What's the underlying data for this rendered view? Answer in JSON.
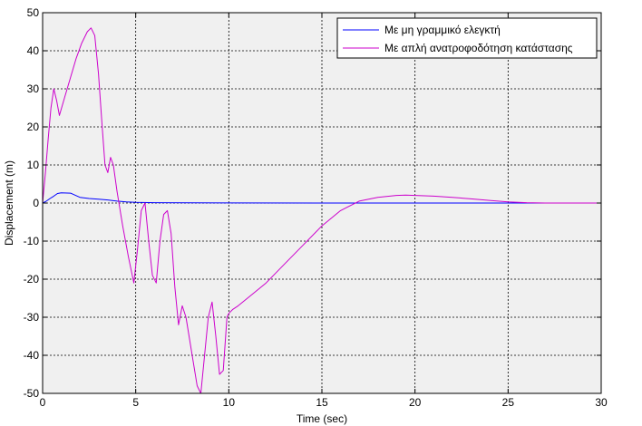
{
  "chart_data": {
    "type": "line",
    "title": "",
    "xlabel": "Time (sec)",
    "ylabel": "Displacement (m)",
    "xlim": [
      0,
      30
    ],
    "ylim": [
      -50,
      50
    ],
    "xticks": [
      0,
      5,
      10,
      15,
      20,
      25,
      30
    ],
    "yticks": [
      -50,
      -40,
      -30,
      -20,
      -10,
      0,
      10,
      20,
      30,
      40,
      50
    ],
    "grid": true,
    "legend_position": "top-right",
    "plot_background": "#f0f0f0",
    "series": [
      {
        "name": "Με μη γραμμικό ελεγκτή",
        "color": "#0000ff",
        "x": [
          0,
          0.2,
          0.4,
          0.6,
          0.8,
          1.0,
          1.5,
          2.0,
          2.5,
          3.0,
          3.5,
          4.0,
          4.5,
          5.0,
          6.0,
          8.0,
          10.0,
          15.0,
          20.0,
          25.0,
          30.0
        ],
        "y": [
          0,
          0.5,
          1.2,
          1.8,
          2.5,
          2.7,
          2.6,
          1.5,
          1.2,
          1.0,
          0.8,
          0.5,
          0.3,
          0.2,
          0.1,
          0.05,
          0.02,
          0,
          0,
          0,
          0
        ]
      },
      {
        "name": "Με απλή ανατροφοδότηση κατάστασης",
        "color": "#cc00cc",
        "x": [
          0,
          0.15,
          0.3,
          0.45,
          0.6,
          0.75,
          0.9,
          1.2,
          1.5,
          1.8,
          2.1,
          2.4,
          2.6,
          2.8,
          3.0,
          3.2,
          3.35,
          3.5,
          3.65,
          3.8,
          4.0,
          4.3,
          4.6,
          4.9,
          5.1,
          5.3,
          5.5,
          5.7,
          5.9,
          6.1,
          6.3,
          6.5,
          6.7,
          6.9,
          7.1,
          7.3,
          7.5,
          7.7,
          7.9,
          8.1,
          8.3,
          8.5,
          8.7,
          8.9,
          9.1,
          9.3,
          9.5,
          9.7,
          9.9,
          10.0,
          10.2,
          10.5,
          11.0,
          12.0,
          13.0,
          14.0,
          15.0,
          16.0,
          17.0,
          18.0,
          19.0,
          19.5,
          20.0,
          21.0,
          22.0,
          23.0,
          24.0,
          25.0,
          26.0,
          27.0,
          28.0,
          29.0,
          30.0
        ],
        "y": [
          0,
          8,
          17,
          25,
          30,
          27,
          23,
          28,
          33,
          38,
          42,
          45,
          46,
          44,
          34,
          20,
          10,
          8,
          12,
          10,
          3,
          -6,
          -14,
          -21,
          -12,
          -2,
          0,
          -10,
          -19,
          -21,
          -10,
          -3,
          -2,
          -8,
          -22,
          -32,
          -27,
          -30,
          -36,
          -42,
          -48,
          -50,
          -40,
          -30,
          -26,
          -35,
          -45,
          -44,
          -30,
          -29,
          -28,
          -27,
          -25,
          -21,
          -16,
          -11,
          -6,
          -2,
          0.5,
          1.5,
          2.0,
          2.1,
          2.0,
          1.8,
          1.5,
          1.1,
          0.7,
          0.3,
          0.1,
          0,
          0,
          0,
          0
        ]
      }
    ]
  }
}
